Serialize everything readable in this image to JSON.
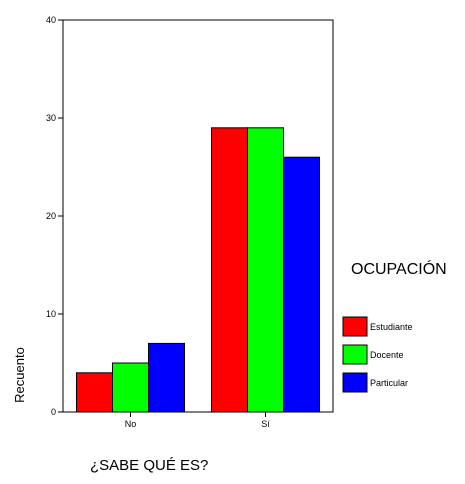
{
  "chart_data": {
    "type": "bar",
    "title": "",
    "xlabel": "¿SABE QUÉ ES?",
    "ylabel": "Recuento",
    "categories": [
      "No",
      "Sí"
    ],
    "ylim": [
      0,
      40
    ],
    "yticks": [
      0,
      10,
      20,
      30,
      40
    ],
    "grid": false,
    "legend": {
      "title": "OCUPACIÓN",
      "position": "right"
    },
    "series": [
      {
        "name": "Estudiante",
        "values": [
          4,
          29
        ],
        "color": "#ff0000"
      },
      {
        "name": "Docente",
        "values": [
          5,
          29
        ],
        "color": "#00ff00"
      },
      {
        "name": "Particular",
        "values": [
          7,
          26
        ],
        "color": "#0000ff"
      }
    ]
  }
}
